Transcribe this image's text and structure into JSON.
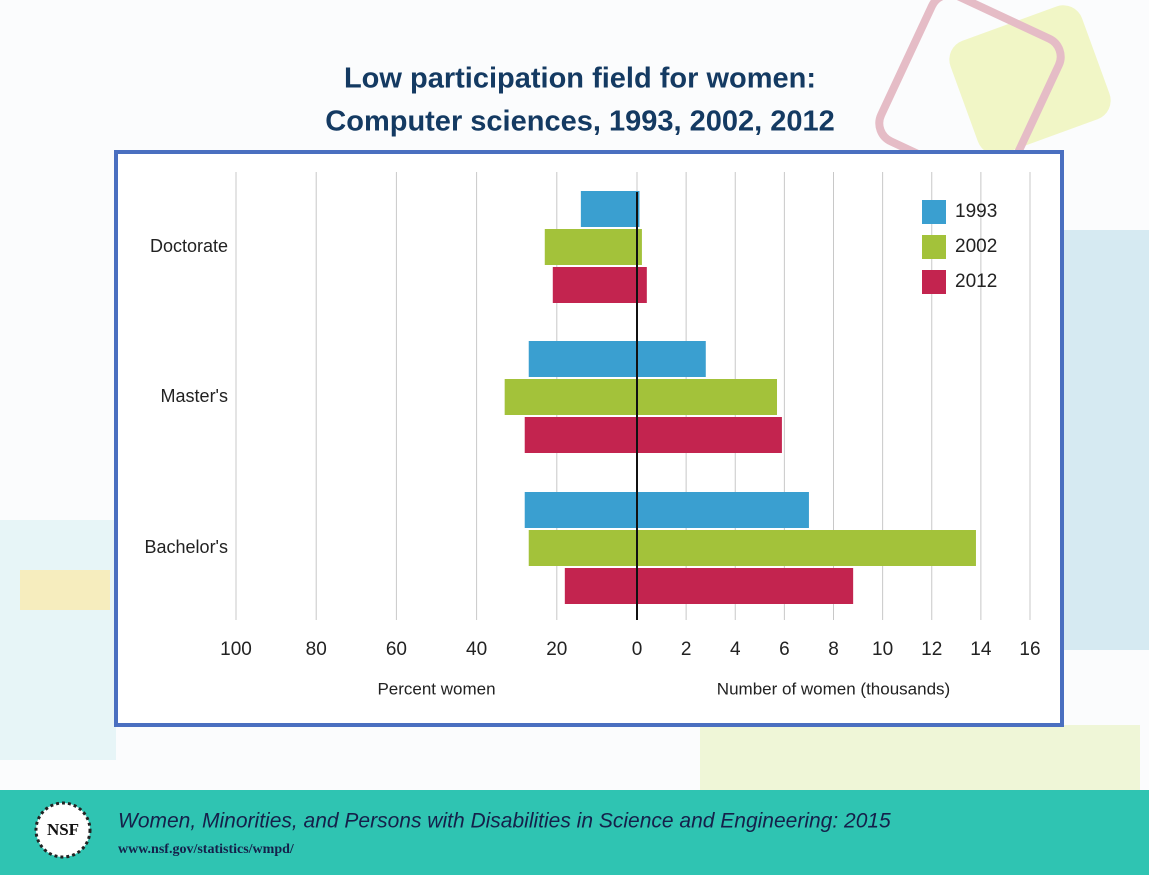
{
  "header": {
    "title": [
      "Low participation field for women:",
      "Computer sciences, 1993, 2002, 2012"
    ]
  },
  "chart_data": [
    {
      "type": "barh",
      "xlabel": "Percent women",
      "categories": [
        "Doctorate",
        "Master's",
        "Bachelor's"
      ],
      "xlim": [
        100,
        0
      ],
      "xticks": [
        100,
        80,
        60,
        40,
        20,
        0
      ],
      "grid": true,
      "legend": "upper right",
      "series": [
        {
          "name": "1993",
          "color": "#3a9fd0",
          "values": [
            14,
            27,
            28
          ]
        },
        {
          "name": "2002",
          "color": "#a3c23a",
          "values": [
            23,
            33,
            27
          ]
        },
        {
          "name": "2012",
          "color": "#c3244f",
          "values": [
            21,
            28,
            18
          ]
        }
      ]
    },
    {
      "type": "barh",
      "xlabel": "Number of women (thousands)",
      "xlim": [
        0,
        16
      ],
      "xticks": [
        2,
        4,
        6,
        8,
        10,
        12,
        14,
        16
      ],
      "grid": true,
      "series": [
        {
          "color": "#3a9fd0",
          "values": [
            0.1,
            2.8,
            7.0
          ]
        },
        {
          "color": "#a3c23a",
          "values": [
            0.2,
            5.7,
            13.8
          ]
        },
        {
          "color": "#c3244f",
          "values": [
            0.4,
            5.9,
            8.8
          ]
        }
      ]
    }
  ],
  "footer": {
    "logo": "NSF",
    "title": "Women, Minorities, and Persons with Disabilities in Science and Engineering: 2015",
    "url": "www.nsf.gov/statistics/wmpd/"
  }
}
